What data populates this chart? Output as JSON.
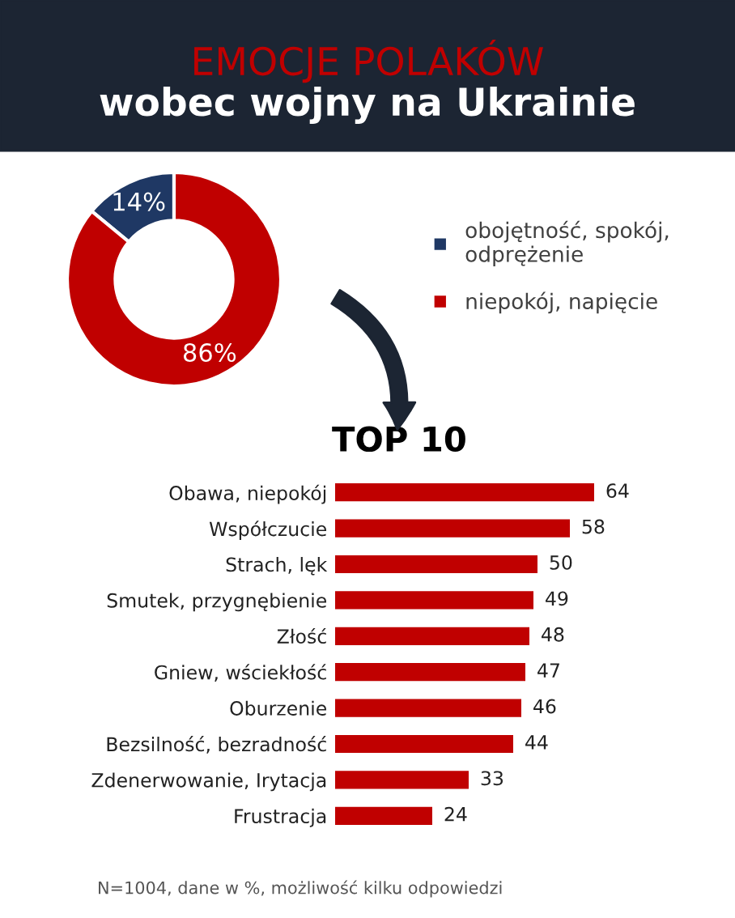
{
  "chart_data": [
    {
      "type": "donut",
      "title": "EMOCJE POLAKÓW",
      "subtitle": "wobec wojny na Ukrainie",
      "categories": [
        "obojętność, spokój, odprężenie",
        "niepokój, napięcie"
      ],
      "values": [
        14,
        86
      ],
      "colors": [
        "#1f3864",
        "#c00000"
      ],
      "value_labels": [
        "14%",
        "86%"
      ],
      "legend": "right"
    },
    {
      "type": "bar",
      "orientation": "horizontal",
      "title": "TOP 10",
      "categories": [
        "Obawa, niepokój",
        "Współczucie",
        "Strach, lęk",
        "Smutek, przygnębienie",
        "Złość",
        "Gniew, wściekłość",
        "Oburzenie",
        "Bezsilność, bezradność",
        "Zdenerwowanie, Irytacja",
        "Frustracja"
      ],
      "values": [
        64,
        58,
        50,
        49,
        48,
        47,
        46,
        44,
        33,
        24
      ],
      "color": "#c00000",
      "data_labels": true,
      "tick_labels": "y",
      "annotations": [
        "N=1004, dane w %, możliwość kilku odpowiedzi"
      ]
    }
  ]
}
